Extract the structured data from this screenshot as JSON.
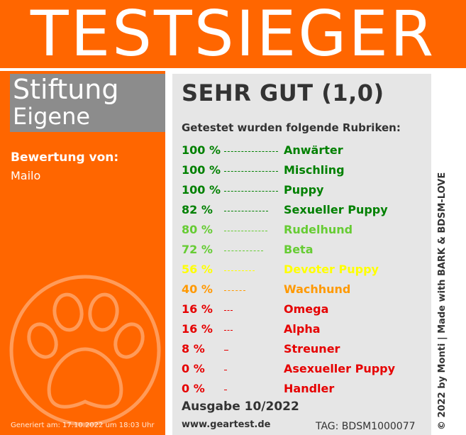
{
  "banner": {
    "title": "TESTSIEGER"
  },
  "organization": {
    "line1": "Stiftung",
    "line2": "Eigene"
  },
  "rated_by": {
    "label": "Bewertung von:",
    "name": "Mailo"
  },
  "generated_at": "Generiert am: 17.10.2022 um 18:03 Uhr",
  "grade": "SEHR GUT (1,0)",
  "categories_heading": "Getestet wurden folgende Rubriken:",
  "categories": [
    {
      "percent": "100 %",
      "value": 100,
      "label": "Anwärter",
      "color": "#008000"
    },
    {
      "percent": "100 %",
      "value": 100,
      "label": "Mischling",
      "color": "#008000"
    },
    {
      "percent": "100 %",
      "value": 100,
      "label": "Puppy",
      "color": "#008000"
    },
    {
      "percent": "82 %",
      "value": 82,
      "label": "Sexueller Puppy",
      "color": "#008000"
    },
    {
      "percent": "80 %",
      "value": 80,
      "label": "Rudelhund",
      "color": "#66cc33"
    },
    {
      "percent": "72 %",
      "value": 72,
      "label": "Beta",
      "color": "#66cc33"
    },
    {
      "percent": "56 %",
      "value": 56,
      "label": "Devoter Puppy",
      "color": "#ffff00"
    },
    {
      "percent": "40 %",
      "value": 40,
      "label": "Wachhund",
      "color": "#ff9900"
    },
    {
      "percent": "16 %",
      "value": 16,
      "label": "Omega",
      "color": "#e60000"
    },
    {
      "percent": "16 %",
      "value": 16,
      "label": "Alpha",
      "color": "#e60000"
    },
    {
      "percent": "8 %",
      "value": 8,
      "label": "Streuner",
      "color": "#e60000"
    },
    {
      "percent": "0 %",
      "value": 0,
      "label": "Asexueller Puppy",
      "color": "#e60000"
    },
    {
      "percent": "0 %",
      "value": 0,
      "label": "Handler",
      "color": "#e60000"
    }
  ],
  "issue": "Ausgabe 10/2022",
  "website": "www.geartest.de",
  "tag": "TAG: BDSM1000077",
  "credit": "© 2022 by Monti | Made with BARK & BDSM-LOVE",
  "colors": {
    "brand_orange": "#ff6600",
    "org_box_gray": "#8c8c8c",
    "panel_gray": "#e6e6e6"
  },
  "icons": {
    "background": "paw-print-icon"
  }
}
